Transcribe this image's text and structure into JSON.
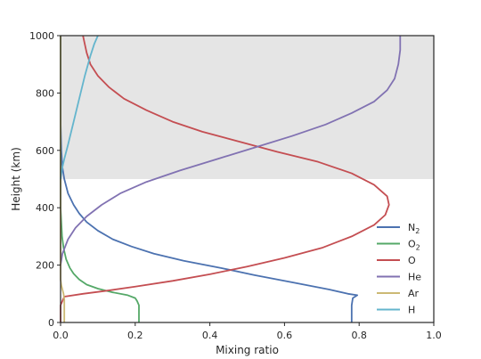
{
  "chart_data": {
    "type": "line",
    "xlabel": "Mixing ratio",
    "ylabel": "Height (km)",
    "xlim": [
      0,
      1.0
    ],
    "ylim": [
      0,
      1000
    ],
    "x_ticks": [
      {
        "value": 0.0,
        "label": "0.0"
      },
      {
        "value": 0.2,
        "label": "0.2"
      },
      {
        "value": 0.4,
        "label": "0.4"
      },
      {
        "value": 0.6,
        "label": "0.6"
      },
      {
        "value": 0.8,
        "label": "0.8"
      },
      {
        "value": 1.0,
        "label": "1.0"
      }
    ],
    "y_ticks": [
      {
        "value": 0,
        "label": "0"
      },
      {
        "value": 200,
        "label": "200"
      },
      {
        "value": 400,
        "label": "400"
      },
      {
        "value": 600,
        "label": "600"
      },
      {
        "value": 800,
        "label": "800"
      },
      {
        "value": 1000,
        "label": "1000"
      }
    ],
    "grid": false,
    "legend_position": "lower-right",
    "shaded_region": {
      "y_from": 500,
      "y_to": 1000,
      "color": "#e5e5e5"
    },
    "series": [
      {
        "name": "N",
        "subscript": "2",
        "color": "#4c72b0",
        "points": [
          [
            0.78,
            0
          ],
          [
            0.78,
            60
          ],
          [
            0.783,
            85
          ],
          [
            0.795,
            95
          ],
          [
            0.77,
            100
          ],
          [
            0.72,
            115
          ],
          [
            0.62,
            140
          ],
          [
            0.52,
            165
          ],
          [
            0.43,
            190
          ],
          [
            0.33,
            215
          ],
          [
            0.25,
            240
          ],
          [
            0.19,
            265
          ],
          [
            0.14,
            290
          ],
          [
            0.1,
            320
          ],
          [
            0.07,
            350
          ],
          [
            0.05,
            380
          ],
          [
            0.035,
            410
          ],
          [
            0.02,
            450
          ],
          [
            0.01,
            500
          ],
          [
            0.005,
            540
          ],
          [
            0.002,
            600
          ],
          [
            0.0,
            700
          ],
          [
            0.0,
            1000
          ]
        ]
      },
      {
        "name": "O",
        "subscript": "2",
        "color": "#55a868",
        "points": [
          [
            0.21,
            0
          ],
          [
            0.21,
            60
          ],
          [
            0.205,
            75
          ],
          [
            0.2,
            85
          ],
          [
            0.18,
            95
          ],
          [
            0.14,
            105
          ],
          [
            0.1,
            118
          ],
          [
            0.07,
            132
          ],
          [
            0.05,
            150
          ],
          [
            0.035,
            170
          ],
          [
            0.025,
            190
          ],
          [
            0.015,
            220
          ],
          [
            0.008,
            260
          ],
          [
            0.004,
            300
          ],
          [
            0.002,
            350
          ],
          [
            0.0,
            400
          ],
          [
            0.0,
            1000
          ]
        ]
      },
      {
        "name": "O",
        "subscript": "",
        "color": "#c44e52",
        "points": [
          [
            0.0,
            0
          ],
          [
            0.0,
            60
          ],
          [
            0.01,
            90
          ],
          [
            0.06,
            100
          ],
          [
            0.12,
            110
          ],
          [
            0.2,
            125
          ],
          [
            0.3,
            145
          ],
          [
            0.4,
            168
          ],
          [
            0.5,
            195
          ],
          [
            0.6,
            225
          ],
          [
            0.7,
            260
          ],
          [
            0.78,
            300
          ],
          [
            0.84,
            340
          ],
          [
            0.87,
            375
          ],
          [
            0.88,
            410
          ],
          [
            0.875,
            440
          ],
          [
            0.84,
            480
          ],
          [
            0.78,
            520
          ],
          [
            0.69,
            560
          ],
          [
            0.58,
            595
          ],
          [
            0.48,
            630
          ],
          [
            0.38,
            665
          ],
          [
            0.3,
            700
          ],
          [
            0.23,
            740
          ],
          [
            0.17,
            780
          ],
          [
            0.13,
            820
          ],
          [
            0.1,
            860
          ],
          [
            0.08,
            900
          ],
          [
            0.07,
            940
          ],
          [
            0.065,
            970
          ],
          [
            0.06,
            1000
          ]
        ]
      },
      {
        "name": "He",
        "subscript": "",
        "color": "#8172b2",
        "points": [
          [
            0.0,
            200
          ],
          [
            0.005,
            240
          ],
          [
            0.02,
            290
          ],
          [
            0.04,
            330
          ],
          [
            0.07,
            370
          ],
          [
            0.11,
            410
          ],
          [
            0.16,
            450
          ],
          [
            0.23,
            490
          ],
          [
            0.32,
            530
          ],
          [
            0.42,
            570
          ],
          [
            0.52,
            610
          ],
          [
            0.62,
            650
          ],
          [
            0.71,
            690
          ],
          [
            0.78,
            730
          ],
          [
            0.84,
            770
          ],
          [
            0.875,
            810
          ],
          [
            0.895,
            850
          ],
          [
            0.905,
            900
          ],
          [
            0.91,
            950
          ],
          [
            0.91,
            1000
          ]
        ]
      },
      {
        "name": "Ar",
        "subscript": "",
        "color": "#ccb974",
        "points": [
          [
            0.01,
            0
          ],
          [
            0.01,
            80
          ],
          [
            0.008,
            100
          ],
          [
            0.005,
            115
          ],
          [
            0.002,
            130
          ],
          [
            0.0,
            150
          ],
          [
            0.0,
            1000
          ]
        ]
      },
      {
        "name": "H",
        "subscript": "",
        "color": "#64b5cd",
        "points": [
          [
            0.0,
            500
          ],
          [
            0.003,
            530
          ],
          [
            0.01,
            570
          ],
          [
            0.02,
            620
          ],
          [
            0.035,
            700
          ],
          [
            0.05,
            780
          ],
          [
            0.065,
            860
          ],
          [
            0.08,
            930
          ],
          [
            0.09,
            970
          ],
          [
            0.1,
            1000
          ]
        ]
      }
    ]
  }
}
